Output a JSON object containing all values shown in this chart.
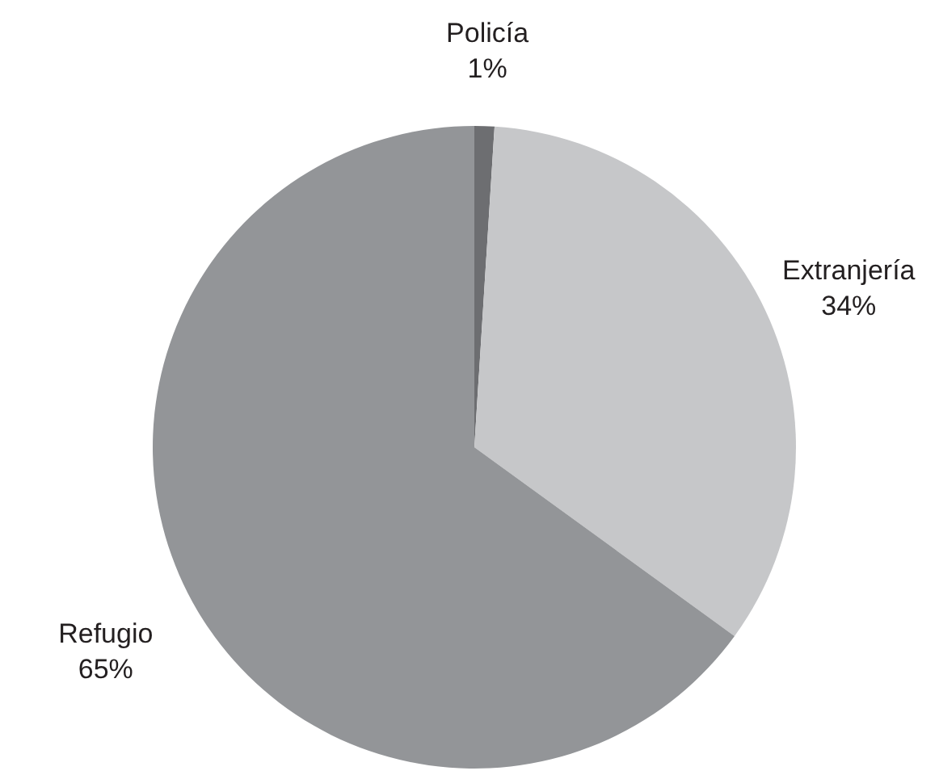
{
  "chart_data": {
    "type": "pie",
    "categories": [
      "Policía",
      "Extranjería",
      "Refugio"
    ],
    "values": [
      1,
      34,
      65
    ],
    "colors": [
      "#6d6e71",
      "#c6c7c9",
      "#939598"
    ],
    "value_labels": [
      "1%",
      "34%",
      "65%"
    ],
    "legend": false
  }
}
